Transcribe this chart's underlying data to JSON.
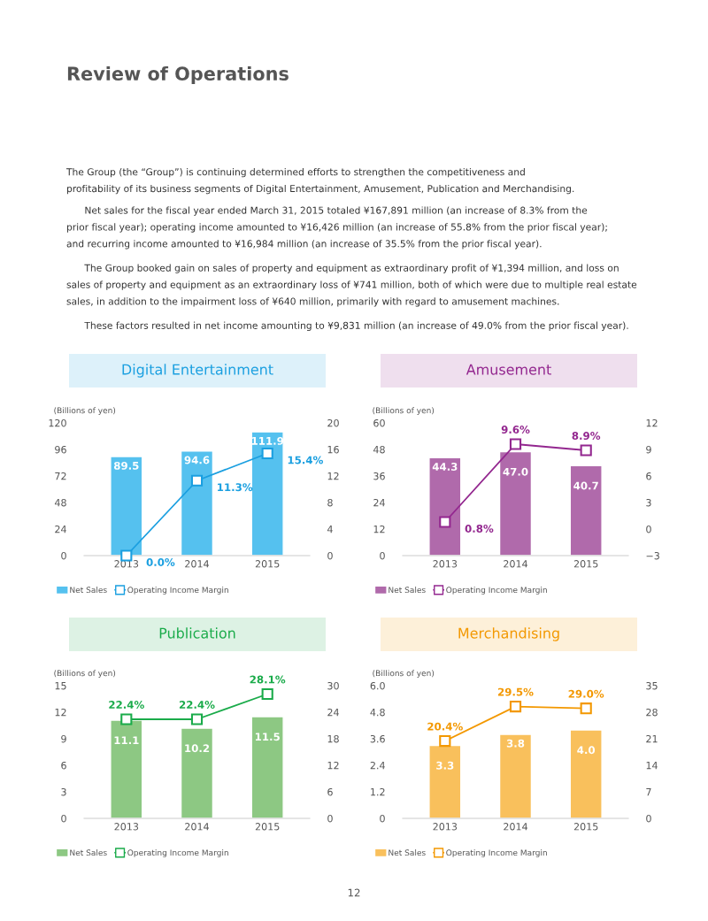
{
  "chart_data": [
    {
      "type": "other",
      "title": "Review of Operations",
      "annotations": [
        "The Group (the “Group”) is continuing determined efforts to strengthen the competitiveness and\nprofitability of its business segments of Digital Entertainment, Amusement, Publication and Merchandising.",
        "      Net sales for the fiscal year ended March 31, 2015 totaled ¥167,891 million (an increase of 8.3% from the\nprior fiscal year); operating income amounted to ¥16,426 million (an increase of 55.8% from the prior fiscal year);\nand recurring income amounted to ¥16,984 million (an increase of 35.5% from the prior fiscal year).",
        "      The Group booked gain on sales of property and equipment as extraordinary profit of ¥1,394 million, and loss on\nsales of property and equipment as an extraordinary loss of ¥741 million, both of which were due to multiple real estate\nsales, in addition to the impairment loss of ¥640 million, primarily with regard to amusement machines.",
        "      These factors resulted in net income amounting to ¥9,831 million (an increase of 49.0% from the prior fiscal year).",
        "12"
      ]
    },
    {
      "type": "bar",
      "title": "Digital Entertainment",
      "ylabel": "(Billions of yen)",
      "categories": [
        "2013",
        "2014",
        "2015"
      ],
      "ylim": [
        0,
        120
      ],
      "yticks": [
        0,
        24,
        48,
        72,
        96,
        120
      ],
      "y2lim": [
        0,
        20
      ],
      "y2ticks": [
        0,
        4,
        8,
        12,
        16,
        20
      ],
      "legend": "bottom",
      "grid": false,
      "series": [
        {
          "name": "Net Sales",
          "type": "bar",
          "color": "#55c1ef",
          "values": [
            89.5,
            94.6,
            111.9
          ],
          "value_labels": [
            "89.5",
            "94.6",
            "111.9"
          ]
        },
        {
          "name": "Operating Income Margin",
          "type": "line",
          "axis": "y2",
          "marker": "square",
          "color": "#1a9fe0",
          "values": [
            0.0,
            11.3,
            15.4
          ],
          "value_labels": [
            "0.0%",
            "11.3%",
            "15.4%"
          ]
        }
      ]
    },
    {
      "type": "bar",
      "title": "Amusement",
      "ylabel": "(Billions of yen)",
      "categories": [
        "2013",
        "2014",
        "2015"
      ],
      "ylim": [
        0,
        60
      ],
      "yticks": [
        0,
        12,
        24,
        36,
        48,
        60
      ],
      "y2lim": [
        -3,
        12
      ],
      "y2ticks": [
        {
          "value": -3,
          "label": "−3"
        },
        0,
        3,
        6,
        9,
        12
      ],
      "legend": "bottom",
      "grid": false,
      "series": [
        {
          "name": "Net Sales",
          "type": "bar",
          "color": "#b06aab",
          "values": [
            44.3,
            47.0,
            40.7
          ],
          "value_labels": [
            "44.3",
            "47.0",
            "40.7"
          ]
        },
        {
          "name": "Operating Income Margin",
          "type": "line",
          "axis": "y2",
          "marker": "square",
          "color": "#93278f",
          "values": [
            0.8,
            9.6,
            8.9
          ],
          "value_labels": [
            "0.8%",
            "9.6%",
            "8.9%"
          ]
        }
      ]
    },
    {
      "type": "bar",
      "title": "Publication",
      "ylabel": "(Billions of yen)",
      "categories": [
        "2013",
        "2014",
        "2015"
      ],
      "ylim": [
        0,
        15
      ],
      "yticks": [
        0,
        3,
        6,
        9,
        12,
        15
      ],
      "y2lim": [
        0,
        30
      ],
      "y2ticks": [
        0,
        6,
        12,
        18,
        24,
        30
      ],
      "legend": "bottom",
      "grid": false,
      "series": [
        {
          "name": "Net Sales",
          "type": "bar",
          "color": "#8dc883",
          "values": [
            11.1,
            10.2,
            11.5
          ],
          "value_labels": [
            "11.1",
            "10.2",
            "11.5"
          ]
        },
        {
          "name": "Operating Income Margin",
          "type": "line",
          "axis": "y2",
          "marker": "square",
          "color": "#1aab4a",
          "values": [
            22.4,
            22.4,
            28.1
          ],
          "value_labels": [
            "22.4%",
            "22.4%",
            "28.1%"
          ]
        }
      ]
    },
    {
      "type": "bar",
      "title": "Merchandising",
      "ylabel": "(Billions of yen)",
      "categories": [
        "2013",
        "2014",
        "2015"
      ],
      "ylim": [
        0,
        6.0
      ],
      "yticks": [
        {
          "value": 0,
          "label": "0"
        },
        {
          "value": 1.2,
          "label": "1.2"
        },
        {
          "value": 2.4,
          "label": "2.4"
        },
        {
          "value": 3.6,
          "label": "3.6"
        },
        {
          "value": 4.8,
          "label": "4.8"
        },
        {
          "value": 6.0,
          "label": "6.0"
        }
      ],
      "y2lim": [
        0,
        35
      ],
      "y2ticks": [
        0,
        7,
        14,
        21,
        28,
        35
      ],
      "legend": "bottom",
      "grid": false,
      "series": [
        {
          "name": "Net Sales",
          "type": "bar",
          "color": "#f9c05c",
          "values": [
            3.3,
            3.8,
            4.0
          ],
          "value_labels": [
            "3.3",
            "3.8",
            "4.0"
          ]
        },
        {
          "name": "Operating Income Margin",
          "type": "line",
          "axis": "y2",
          "marker": "square",
          "color": "#f39800",
          "values": [
            20.4,
            29.5,
            29.0
          ],
          "value_labels": [
            "20.4%",
            "29.5%",
            "29.0%"
          ]
        }
      ]
    }
  ]
}
